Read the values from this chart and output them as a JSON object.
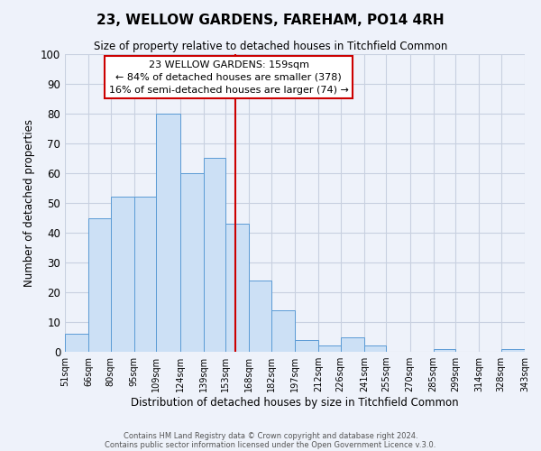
{
  "title": "23, WELLOW GARDENS, FAREHAM, PO14 4RH",
  "subtitle": "Size of property relative to detached houses in Titchfield Common",
  "xlabel": "Distribution of detached houses by size in Titchfield Common",
  "ylabel": "Number of detached properties",
  "bar_lefts": [
    51,
    66,
    80,
    95,
    109,
    124,
    139,
    153,
    168,
    182,
    197,
    212,
    226,
    241,
    255,
    270,
    285,
    299,
    314,
    328
  ],
  "bar_rights": [
    66,
    80,
    95,
    109,
    124,
    139,
    153,
    168,
    182,
    197,
    212,
    226,
    241,
    255,
    270,
    285,
    299,
    314,
    328,
    343
  ],
  "bar_heights": [
    6,
    45,
    52,
    52,
    80,
    60,
    65,
    43,
    24,
    14,
    4,
    2,
    5,
    2,
    0,
    0,
    1,
    0,
    0,
    1
  ],
  "bar_color": "#cce0f5",
  "bar_edge_color": "#5b9bd5",
  "vline_x": 159,
  "vline_color": "#cc0000",
  "ylim": [
    0,
    100
  ],
  "annotation_title": "23 WELLOW GARDENS: 159sqm",
  "annotation_line1": "← 84% of detached houses are smaller (378)",
  "annotation_line2": "16% of semi-detached houses are larger (74) →",
  "annotation_box_color": "#ffffff",
  "annotation_box_edge": "#cc0000",
  "footer1": "Contains HM Land Registry data © Crown copyright and database right 2024.",
  "footer2": "Contains public sector information licensed under the Open Government Licence v.3.0.",
  "tick_positions": [
    51,
    66,
    80,
    95,
    109,
    124,
    139,
    153,
    168,
    182,
    197,
    212,
    226,
    241,
    255,
    270,
    285,
    299,
    314,
    328,
    343
  ],
  "tick_labels": [
    "51sqm",
    "66sqm",
    "80sqm",
    "95sqm",
    "109sqm",
    "124sqm",
    "139sqm",
    "153sqm",
    "168sqm",
    "182sqm",
    "197sqm",
    "212sqm",
    "226sqm",
    "241sqm",
    "255sqm",
    "270sqm",
    "285sqm",
    "299sqm",
    "314sqm",
    "328sqm",
    "343sqm"
  ],
  "background_color": "#eef2fa",
  "grid_color": "#c8d0e0",
  "xlim": [
    51,
    343
  ]
}
